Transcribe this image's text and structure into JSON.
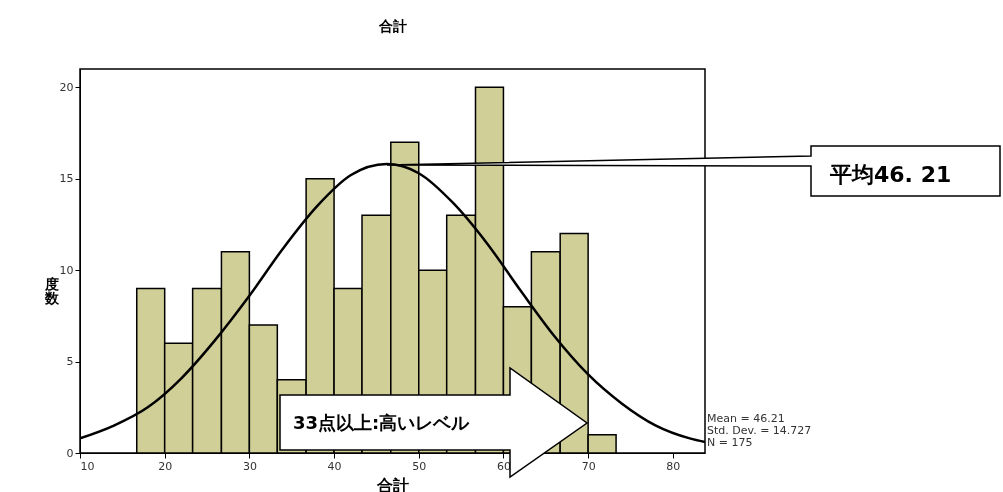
{
  "chart_data": {
    "type": "histogram",
    "title": "合計",
    "xlabel": "合計",
    "ylabel": "度数",
    "bins": [
      16.7,
      20,
      23.3,
      26.7,
      30,
      33.3,
      36.7,
      40,
      43.3,
      46.7,
      50,
      53.3,
      56.7,
      60,
      63.3,
      66.7,
      70,
      73.3
    ],
    "series": [
      {
        "color": "#d1cf98",
        "values": [
          9,
          6,
          9,
          11,
          7,
          4,
          15,
          9,
          13,
          17,
          10,
          13,
          20,
          8,
          11,
          12,
          1
        ]
      },
      {
        "type": "line",
        "color": "#000000",
        "x": [
          10,
          14,
          18,
          22,
          26,
          30,
          34,
          38,
          42,
          46.21,
          50,
          54,
          58,
          62,
          66,
          70,
          74,
          78,
          82,
          83.8
        ],
        "values": [
          0.8,
          1.5,
          2.5,
          4.1,
          6.2,
          8.6,
          11.2,
          13.5,
          15.2,
          15.8,
          15.3,
          13.7,
          11.5,
          8.9,
          6.4,
          4.3,
          2.7,
          1.5,
          0.8,
          0.6
        ]
      }
    ],
    "xlim": [
      10,
      83.8
    ],
    "xticks": [
      10,
      20,
      30,
      40,
      50,
      60,
      70,
      80
    ],
    "ylim": [
      0,
      21
    ],
    "yticks": [
      0,
      5,
      10,
      15,
      20
    ],
    "grid": false,
    "annotations": [
      "33点以上:高いレベル",
      "平均46. 21",
      "Mean = 46.21",
      "Std. Dev. = 14.727",
      "N = 175"
    ]
  }
}
